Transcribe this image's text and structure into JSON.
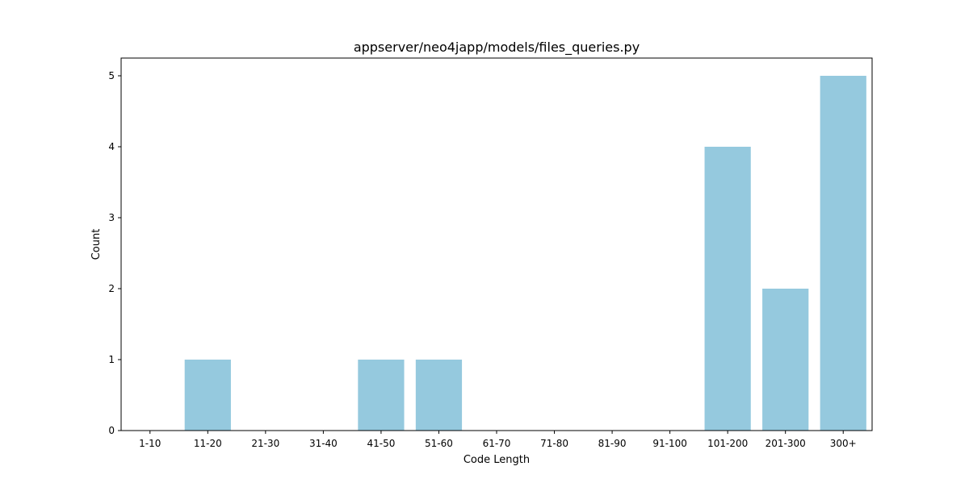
{
  "chart_data": {
    "type": "bar",
    "title": "appserver/neo4japp/models/files_queries.py",
    "xlabel": "Code Length",
    "ylabel": "Count",
    "categories": [
      "1-10",
      "11-20",
      "21-30",
      "31-40",
      "41-50",
      "51-60",
      "61-70",
      "71-80",
      "81-90",
      "91-100",
      "101-200",
      "201-300",
      "300+"
    ],
    "values": [
      0,
      1,
      0,
      0,
      1,
      1,
      0,
      0,
      0,
      0,
      4,
      2,
      5
    ],
    "ylim": [
      0,
      5.25
    ],
    "yticks": [
      0,
      1,
      2,
      3,
      4,
      5
    ],
    "bar_color": "#95c9de",
    "grid": false,
    "legend": "none"
  }
}
